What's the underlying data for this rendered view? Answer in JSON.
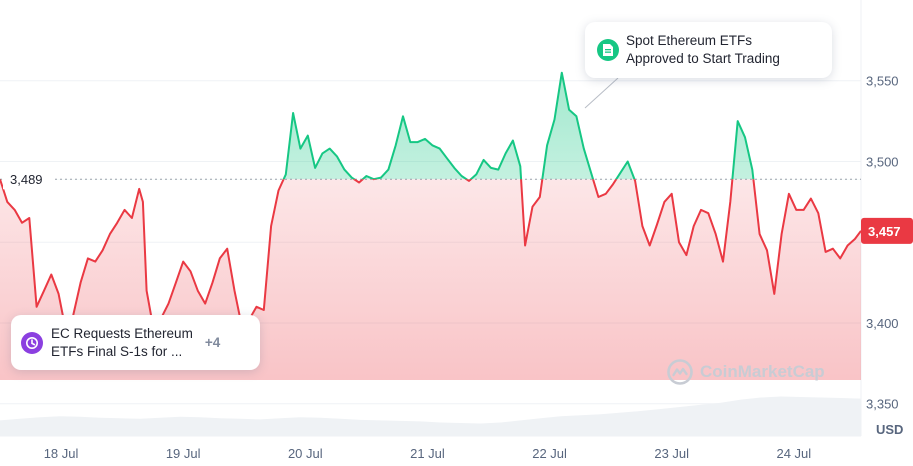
{
  "chart_data": {
    "type": "line",
    "y_axis": {
      "ticks": [
        3550,
        3500,
        3450,
        3400,
        3350
      ],
      "tick_labels": [
        "3,550",
        "3,500",
        "",
        "3,400",
        "3,350"
      ],
      "ylim": [
        3330,
        3600
      ],
      "unit": "USD"
    },
    "x_axis": {
      "tick_labels": [
        "18 Jul",
        "19 Jul",
        "20 Jul",
        "21 Jul",
        "22 Jul",
        "23 Jul",
        "24 Jul"
      ],
      "tick_positions": [
        0.5,
        1.5,
        2.5,
        3.5,
        4.5,
        5.5,
        6.5
      ],
      "xlim": [
        0,
        7.05
      ]
    },
    "reference_price": 3489,
    "reference_label": "3,489",
    "current_price": 3457,
    "current_label": "3,457",
    "colors": {
      "above": "#16c784",
      "below": "#ea3943",
      "ref_line": "#9aa0ab",
      "volume": "#eff2f5"
    },
    "series": [
      {
        "values": [
          [
            0.0,
            3489
          ],
          [
            0.06,
            3475
          ],
          [
            0.12,
            3470
          ],
          [
            0.18,
            3462
          ],
          [
            0.24,
            3465
          ],
          [
            0.3,
            3410
          ],
          [
            0.36,
            3420
          ],
          [
            0.42,
            3430
          ],
          [
            0.48,
            3418
          ],
          [
            0.54,
            3395
          ],
          [
            0.6,
            3405
          ],
          [
            0.66,
            3425
          ],
          [
            0.72,
            3440
          ],
          [
            0.78,
            3438
          ],
          [
            0.84,
            3445
          ],
          [
            0.9,
            3455
          ],
          [
            0.96,
            3462
          ],
          [
            1.02,
            3470
          ],
          [
            1.08,
            3465
          ],
          [
            1.14,
            3483
          ],
          [
            1.17,
            3475
          ],
          [
            1.2,
            3420
          ],
          [
            1.26,
            3395
          ],
          [
            1.32,
            3403
          ],
          [
            1.38,
            3412
          ],
          [
            1.44,
            3425
          ],
          [
            1.5,
            3438
          ],
          [
            1.56,
            3432
          ],
          [
            1.62,
            3420
          ],
          [
            1.68,
            3412
          ],
          [
            1.74,
            3425
          ],
          [
            1.8,
            3440
          ],
          [
            1.86,
            3446
          ],
          [
            1.92,
            3420
          ],
          [
            1.98,
            3398
          ],
          [
            2.04,
            3402
          ],
          [
            2.1,
            3410
          ],
          [
            2.16,
            3408
          ],
          [
            2.22,
            3460
          ],
          [
            2.28,
            3482
          ],
          [
            2.34,
            3492
          ],
          [
            2.4,
            3530
          ],
          [
            2.46,
            3508
          ],
          [
            2.52,
            3516
          ],
          [
            2.58,
            3496
          ],
          [
            2.64,
            3505
          ],
          [
            2.7,
            3508
          ],
          [
            2.76,
            3503
          ],
          [
            2.82,
            3495
          ],
          [
            2.88,
            3490
          ],
          [
            2.94,
            3487
          ],
          [
            3.0,
            3491
          ],
          [
            3.06,
            3489
          ],
          [
            3.12,
            3490
          ],
          [
            3.18,
            3495
          ],
          [
            3.24,
            3510
          ],
          [
            3.3,
            3528
          ],
          [
            3.36,
            3512
          ],
          [
            3.42,
            3512
          ],
          [
            3.48,
            3514
          ],
          [
            3.54,
            3510
          ],
          [
            3.6,
            3508
          ],
          [
            3.66,
            3502
          ],
          [
            3.72,
            3496
          ],
          [
            3.78,
            3491
          ],
          [
            3.84,
            3488
          ],
          [
            3.9,
            3492
          ],
          [
            3.96,
            3501
          ],
          [
            4.02,
            3496
          ],
          [
            4.08,
            3495
          ],
          [
            4.14,
            3505
          ],
          [
            4.2,
            3513
          ],
          [
            4.26,
            3497
          ],
          [
            4.3,
            3448
          ],
          [
            4.36,
            3472
          ],
          [
            4.42,
            3478
          ],
          [
            4.48,
            3510
          ],
          [
            4.54,
            3526
          ],
          [
            4.6,
            3555
          ],
          [
            4.66,
            3532
          ],
          [
            4.72,
            3528
          ],
          [
            4.78,
            3508
          ],
          [
            4.84,
            3493
          ],
          [
            4.9,
            3478
          ],
          [
            4.96,
            3480
          ],
          [
            5.02,
            3486
          ],
          [
            5.08,
            3493
          ],
          [
            5.14,
            3500
          ],
          [
            5.2,
            3488
          ],
          [
            5.26,
            3460
          ],
          [
            5.32,
            3448
          ],
          [
            5.38,
            3461
          ],
          [
            5.44,
            3475
          ],
          [
            5.5,
            3480
          ],
          [
            5.56,
            3450
          ],
          [
            5.62,
            3442
          ],
          [
            5.68,
            3460
          ],
          [
            5.74,
            3470
          ],
          [
            5.8,
            3468
          ],
          [
            5.86,
            3455
          ],
          [
            5.92,
            3438
          ],
          [
            5.98,
            3475
          ],
          [
            6.04,
            3525
          ],
          [
            6.1,
            3515
          ],
          [
            6.16,
            3495
          ],
          [
            6.22,
            3455
          ],
          [
            6.28,
            3445
          ],
          [
            6.34,
            3418
          ],
          [
            6.4,
            3455
          ],
          [
            6.46,
            3480
          ],
          [
            6.52,
            3470
          ],
          [
            6.58,
            3470
          ],
          [
            6.64,
            3477
          ],
          [
            6.7,
            3468
          ],
          [
            6.76,
            3444
          ],
          [
            6.82,
            3446
          ],
          [
            6.88,
            3440
          ],
          [
            6.94,
            3448
          ],
          [
            7.0,
            3452
          ],
          [
            7.05,
            3457
          ]
        ]
      }
    ],
    "volume": [
      0.3,
      0.33,
      0.36,
      0.38,
      0.37,
      0.35,
      0.34,
      0.33,
      0.35,
      0.37,
      0.36,
      0.34,
      0.33,
      0.32,
      0.34,
      0.36,
      0.35,
      0.33,
      0.31,
      0.3,
      0.29,
      0.28,
      0.26,
      0.25,
      0.24,
      0.26,
      0.3,
      0.34,
      0.38,
      0.4,
      0.42,
      0.45,
      0.48,
      0.52,
      0.56,
      0.6,
      0.64,
      0.7,
      0.74,
      0.76,
      0.75,
      0.74,
      0.73,
      0.72
    ]
  },
  "events": [
    {
      "text_line1": "Spot Ethereum ETFs",
      "text_line2": "Approved to Start Trading",
      "icon": "document-icon",
      "color": "#16c784"
    },
    {
      "text_line1": "EC Requests Ethereum",
      "text_line2": "ETFs Final S-1s for ...",
      "icon": "clock-icon",
      "color": "#8b3fe0",
      "more": "+4"
    }
  ],
  "watermark": "CoinMarketCap"
}
